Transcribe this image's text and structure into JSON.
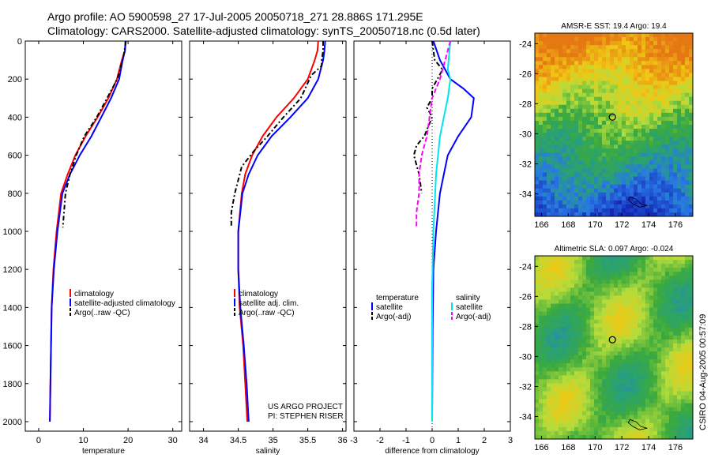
{
  "header": {
    "line1": "Argo profile: AO 5900598_27 17-Jul-2005 20050718_271 28.886S 171.295E",
    "line2": "Climatology: CARS2000. Satellite-adjusted climatology: synTS_20050718.nc (0.5d later)"
  },
  "side_label": "CSIRO 04-Aug-2005 00:57:09",
  "colors": {
    "clim": "#ff0000",
    "sat": "#0000ff",
    "argo": "#000000",
    "sal_sat": "#00e5ee",
    "sal_argo": "#ff00ff"
  },
  "chart_data": [
    {
      "type": "line",
      "id": "temperature",
      "xlabel": "temperature",
      "ylabel": "",
      "xlim": [
        -3,
        32
      ],
      "ylim": [
        2050,
        0
      ],
      "xticks": [
        0,
        10,
        20,
        30
      ],
      "yticks": [
        0,
        200,
        400,
        600,
        800,
        1000,
        1200,
        1400,
        1600,
        1800,
        2000
      ],
      "legend": [
        "climatology",
        "satellite-adjusted climatology",
        "Argo(..raw -QC)"
      ],
      "series": [
        {
          "name": "climatology",
          "style": "clim",
          "x": [
            19.5,
            19.3,
            18.6,
            17.5,
            15.6,
            13.2,
            10.5,
            8.2,
            6.5,
            5.0,
            4.0,
            3.3,
            2.9,
            2.7,
            2.5
          ],
          "y": [
            0,
            50,
            100,
            200,
            300,
            400,
            500,
            600,
            700,
            800,
            1000,
            1200,
            1400,
            1700,
            2000
          ]
        },
        {
          "name": "satellite-adjusted climatology",
          "style": "sat",
          "x": [
            19.4,
            19.3,
            18.8,
            18.0,
            16.2,
            14.0,
            11.8,
            9.2,
            7.0,
            5.3,
            4.2,
            3.4,
            2.9,
            2.7,
            2.5
          ],
          "y": [
            0,
            50,
            100,
            200,
            300,
            400,
            500,
            600,
            700,
            800,
            1000,
            1200,
            1400,
            1700,
            2000
          ]
        },
        {
          "name": "Argo(..raw -QC)",
          "style": "argo",
          "x": [
            19.5,
            19.2,
            18.8,
            17.6,
            15.3,
            13.0,
            10.2,
            8.4,
            7.0,
            6.0,
            5.4
          ],
          "y": [
            0,
            50,
            100,
            200,
            300,
            400,
            500,
            600,
            700,
            800,
            980
          ]
        }
      ]
    },
    {
      "type": "line",
      "id": "salinity",
      "xlabel": "salinity",
      "ylabel": "",
      "xlim": [
        33.8,
        36.05
      ],
      "ylim": [
        2050,
        0
      ],
      "xticks": [
        34,
        34.5,
        35,
        35.5,
        36
      ],
      "yticks": [
        0,
        200,
        400,
        600,
        800,
        1000,
        1200,
        1400,
        1600,
        1800,
        2000
      ],
      "legend": [
        "climatology",
        "satellite adj. clim.",
        "Argo(..raw -QC)"
      ],
      "annotations": [
        "US ARGO PROJECT",
        "PI: STEPHEN RISER"
      ],
      "series": [
        {
          "name": "climatology",
          "style": "clim",
          "x": [
            35.65,
            35.64,
            35.6,
            35.5,
            35.3,
            35.05,
            34.85,
            34.7,
            34.6,
            34.55,
            34.5,
            34.5,
            34.52,
            34.57,
            34.6,
            34.63
          ],
          "y": [
            0,
            50,
            100,
            200,
            300,
            400,
            500,
            600,
            700,
            800,
            1000,
            1200,
            1400,
            1600,
            1800,
            2000
          ]
        },
        {
          "name": "satellite adj. clim.",
          "style": "sat",
          "x": [
            35.75,
            35.74,
            35.72,
            35.65,
            35.5,
            35.25,
            34.98,
            34.78,
            34.65,
            34.56,
            34.5,
            34.5,
            34.53,
            34.58,
            34.62,
            34.65
          ],
          "y": [
            0,
            50,
            100,
            200,
            300,
            400,
            500,
            600,
            700,
            800,
            1000,
            1200,
            1400,
            1600,
            1800,
            2000
          ]
        },
        {
          "name": "Argo(..raw -QC)",
          "style": "argo",
          "x": [
            35.72,
            35.72,
            35.7,
            35.7,
            35.55,
            35.4,
            35.15,
            34.92,
            34.72,
            34.55,
            34.45,
            34.4,
            34.4
          ],
          "y": [
            0,
            50,
            100,
            130,
            180,
            300,
            400,
            500,
            580,
            660,
            800,
            900,
            980
          ]
        }
      ]
    },
    {
      "type": "line",
      "id": "difference",
      "xlabel": "difference from climatology",
      "ylabel": "",
      "xlim": [
        -3,
        3
      ],
      "ylim": [
        2050,
        0
      ],
      "xticks": [
        -3,
        -2,
        -1,
        0,
        1,
        2,
        3
      ],
      "yticks": [
        0,
        200,
        400,
        600,
        800,
        1000,
        1200,
        1400,
        1600,
        1800,
        2000
      ],
      "legend": [
        "temperature",
        "satellite",
        "Argo(-adj)",
        "salinity",
        "satellite",
        "Argo(-adj)"
      ],
      "series": [
        {
          "name": "satellite",
          "style": "sat",
          "x": [
            0.05,
            0.3,
            0.7,
            1.2,
            1.6,
            1.5,
            1.0,
            0.6,
            0.3,
            0.15,
            0.05,
            0.02,
            0.0
          ],
          "y": [
            0,
            100,
            200,
            250,
            300,
            400,
            500,
            600,
            800,
            1000,
            1200,
            1500,
            2000
          ]
        },
        {
          "name": "satellite",
          "style": "sal_sat",
          "x": [
            0.7,
            0.6,
            0.7,
            0.6,
            0.3,
            0.15,
            0.05,
            0.0,
            0.0
          ],
          "y": [
            0,
            150,
            200,
            300,
            500,
            700,
            1000,
            1300,
            2000
          ]
        },
        {
          "name": "Argo(-adj)",
          "style": "argo",
          "x": [
            0.0,
            0.1,
            0.4,
            0.2,
            0.0,
            0.0,
            -0.2,
            0.0,
            -0.3,
            -0.6,
            -0.7,
            -0.5,
            -0.4
          ],
          "y": [
            0,
            100,
            150,
            200,
            250,
            300,
            350,
            400,
            500,
            550,
            600,
            700,
            800
          ]
        },
        {
          "name": "Argo(-adj)",
          "style": "sal_argo",
          "x": [
            0.7,
            0.5,
            0.3,
            0.0,
            -0.1,
            -0.2,
            -0.4,
            -0.5,
            -0.5,
            -0.6,
            -0.6
          ],
          "y": [
            0,
            100,
            200,
            300,
            400,
            500,
            600,
            700,
            800,
            900,
            980
          ]
        }
      ]
    },
    {
      "type": "heatmap",
      "id": "sst_map",
      "title": "AMSR-E SST: 19.4 Argo: 19.4",
      "xlim": [
        165.5,
        177.3
      ],
      "ylim": [
        -35.5,
        -23.3
      ],
      "xticks": [
        166,
        168,
        170,
        172,
        174,
        176
      ],
      "yticks": [
        -24,
        -26,
        -28,
        -30,
        -32,
        -34
      ],
      "marker": {
        "lon": 171.295,
        "lat": -28.886
      }
    },
    {
      "type": "heatmap",
      "id": "sla_map",
      "title": "Altimetric SLA: 0.097 Argo: -0.024",
      "xlim": [
        165.5,
        177.3
      ],
      "ylim": [
        -35.5,
        -23.3
      ],
      "xticks": [
        166,
        168,
        170,
        172,
        174,
        176
      ],
      "yticks": [
        -24,
        -26,
        -28,
        -30,
        -32,
        -34
      ],
      "marker": {
        "lon": 171.295,
        "lat": -28.886
      }
    }
  ]
}
